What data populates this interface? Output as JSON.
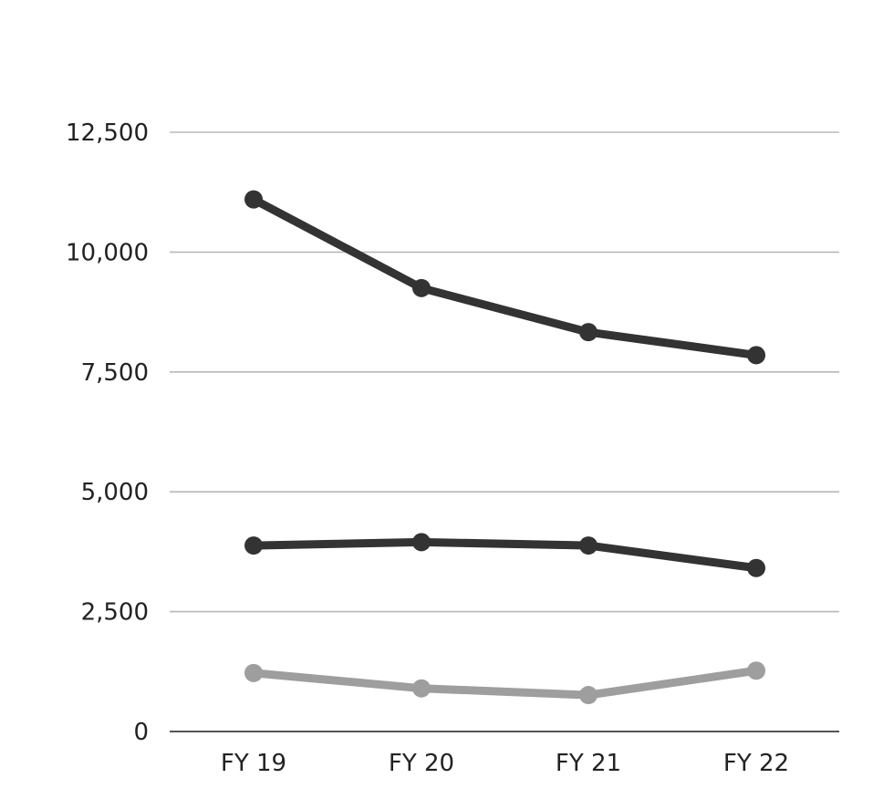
{
  "chart_data": {
    "type": "line",
    "categories": [
      "FY 19",
      "FY 20",
      "FY 21",
      "FY 22"
    ],
    "yticks": [
      0,
      2500,
      5000,
      7500,
      10000,
      12500
    ],
    "ytick_labels": [
      "0",
      "2,500",
      "5,000",
      "7,500",
      "10,000",
      "12,500"
    ],
    "ylim": [
      0,
      12500
    ],
    "grid": true,
    "legend": false,
    "title": "",
    "xlabel": "",
    "ylabel": "",
    "series": [
      {
        "values": [
          11100,
          9250,
          8330,
          7850
        ],
        "color": "#333333"
      },
      {
        "values": [
          3880,
          3950,
          3880,
          3410
        ],
        "color": "#333333"
      },
      {
        "values": [
          1220,
          900,
          760,
          1270
        ],
        "color": "#9e9e9e"
      }
    ],
    "colors": {
      "grid": "#b8b8b8",
      "axis": "#555555",
      "text": "#222222"
    }
  }
}
